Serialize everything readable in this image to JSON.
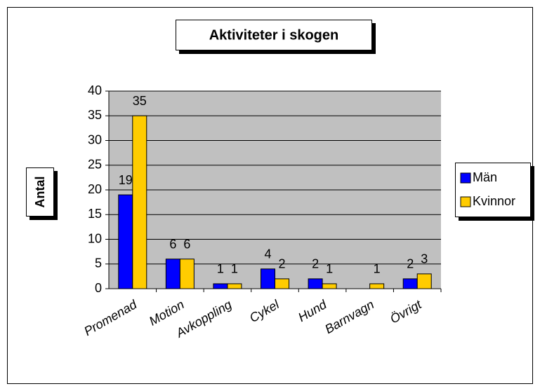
{
  "chart_data": {
    "type": "bar",
    "title": "Aktiviteter i skogen",
    "y_label": "Antal",
    "categories": [
      "Promenad",
      "Motion",
      "Avkoppling",
      "Cykel",
      "Hund",
      "Barnvagn",
      "Övrigt"
    ],
    "series": [
      {
        "name": "Män",
        "color": "#0000ff",
        "values": [
          19,
          6,
          1,
          4,
          2,
          null,
          2
        ]
      },
      {
        "name": "Kvinnor",
        "color": "#ffcc00",
        "values": [
          35,
          6,
          1,
          2,
          1,
          1,
          3
        ]
      }
    ],
    "ylim": [
      0,
      40
    ],
    "yticks": [
      0,
      5,
      10,
      15,
      20,
      25,
      30,
      35,
      40
    ],
    "grid": true,
    "legend": "right"
  }
}
